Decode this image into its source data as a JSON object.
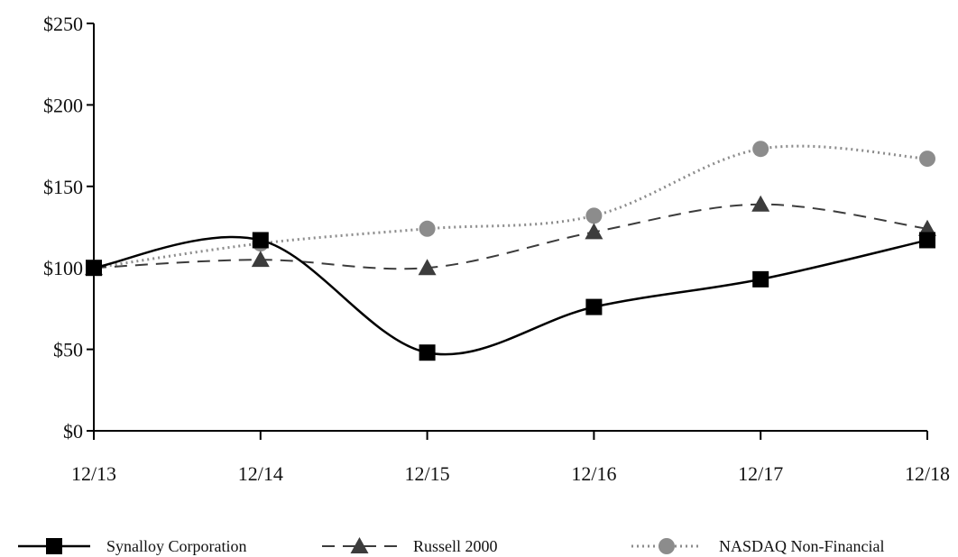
{
  "chart_data": {
    "type": "line",
    "categories": [
      "12/13",
      "12/14",
      "12/15",
      "12/16",
      "12/17",
      "12/18"
    ],
    "ylim": [
      0,
      250
    ],
    "yticks": [
      0,
      50,
      100,
      150,
      200,
      250
    ],
    "ytick_labels": [
      "$0",
      "$50",
      "$100",
      "$150",
      "$200",
      "$250"
    ],
    "grid": false,
    "legend_position": "bottom",
    "series": [
      {
        "name": "Synalloy Corporation",
        "values": [
          100,
          117,
          48,
          76,
          93,
          117
        ],
        "color": "#000000",
        "line_style": "solid",
        "marker": "square"
      },
      {
        "name": "Russell 2000",
        "values": [
          100,
          105,
          100,
          122,
          139,
          124
        ],
        "color": "#3c3c3c",
        "line_style": "dashed",
        "marker": "triangle"
      },
      {
        "name": "NASDAQ Non-Financial",
        "values": [
          100,
          115,
          124,
          132,
          173,
          167
        ],
        "color": "#8c8c8c",
        "line_style": "dotted",
        "marker": "circle"
      }
    ]
  }
}
